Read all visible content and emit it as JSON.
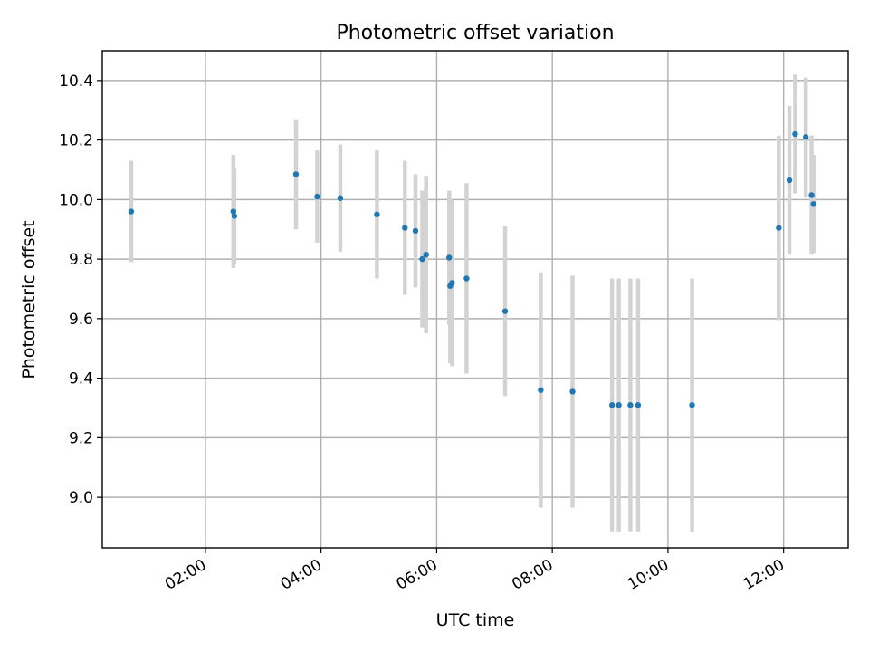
{
  "chart_data": {
    "type": "scatter",
    "title": "Photometric offset variation",
    "xlabel": "UTC time",
    "ylabel": "Photometric offset",
    "x_ticks": [
      "02:00",
      "04:00",
      "06:00",
      "08:00",
      "10:00",
      "12:00"
    ],
    "y_ticks": [
      "9.0",
      "9.2",
      "9.4",
      "9.6",
      "9.8",
      "10.0",
      "10.2",
      "10.4"
    ],
    "xlim": [
      "00:13",
      "13:07"
    ],
    "ylim": [
      8.83,
      10.5
    ],
    "grid": true,
    "colors": {
      "point": "#1f77b4",
      "errorbar": "#d3d3d3"
    },
    "points": [
      {
        "x": "00:43",
        "y": 9.96,
        "err": 0.17
      },
      {
        "x": "02:29",
        "y": 9.96,
        "err": 0.19
      },
      {
        "x": "02:30",
        "y": 9.945,
        "err": 0.16
      },
      {
        "x": "03:34",
        "y": 10.085,
        "err": 0.185
      },
      {
        "x": "03:56",
        "y": 10.01,
        "err": 0.155
      },
      {
        "x": "04:20",
        "y": 10.005,
        "err": 0.18
      },
      {
        "x": "04:58",
        "y": 9.95,
        "err": 0.215
      },
      {
        "x": "05:27",
        "y": 9.905,
        "err": 0.225
      },
      {
        "x": "05:38",
        "y": 9.895,
        "err": 0.19
      },
      {
        "x": "05:45",
        "y": 9.8,
        "err": 0.23
      },
      {
        "x": "05:49",
        "y": 9.815,
        "err": 0.265
      },
      {
        "x": "06:13",
        "y": 9.805,
        "err": 0.225
      },
      {
        "x": "06:14",
        "y": 9.71,
        "err": 0.26
      },
      {
        "x": "06:16",
        "y": 9.72,
        "err": 0.28
      },
      {
        "x": "06:31",
        "y": 9.735,
        "err": 0.32
      },
      {
        "x": "07:11",
        "y": 9.625,
        "err": 0.285
      },
      {
        "x": "07:48",
        "y": 9.36,
        "err": 0.395
      },
      {
        "x": "08:21",
        "y": 9.355,
        "err": 0.39
      },
      {
        "x": "09:02",
        "y": 9.31,
        "err": 0.425
      },
      {
        "x": "09:09",
        "y": 9.31,
        "err": 0.425
      },
      {
        "x": "09:21",
        "y": 9.31,
        "err": 0.425
      },
      {
        "x": "09:29",
        "y": 9.31,
        "err": 0.425
      },
      {
        "x": "10:25",
        "y": 9.31,
        "err": 0.425
      },
      {
        "x": "11:55",
        "y": 9.905,
        "err": 0.31
      },
      {
        "x": "12:06",
        "y": 10.065,
        "err": 0.25
      },
      {
        "x": "12:12",
        "y": 10.22,
        "err": 0.2
      },
      {
        "x": "12:23",
        "y": 10.21,
        "err": 0.2
      },
      {
        "x": "12:29",
        "y": 10.015,
        "err": 0.2
      },
      {
        "x": "12:31",
        "y": 9.985,
        "err": 0.165
      }
    ]
  }
}
